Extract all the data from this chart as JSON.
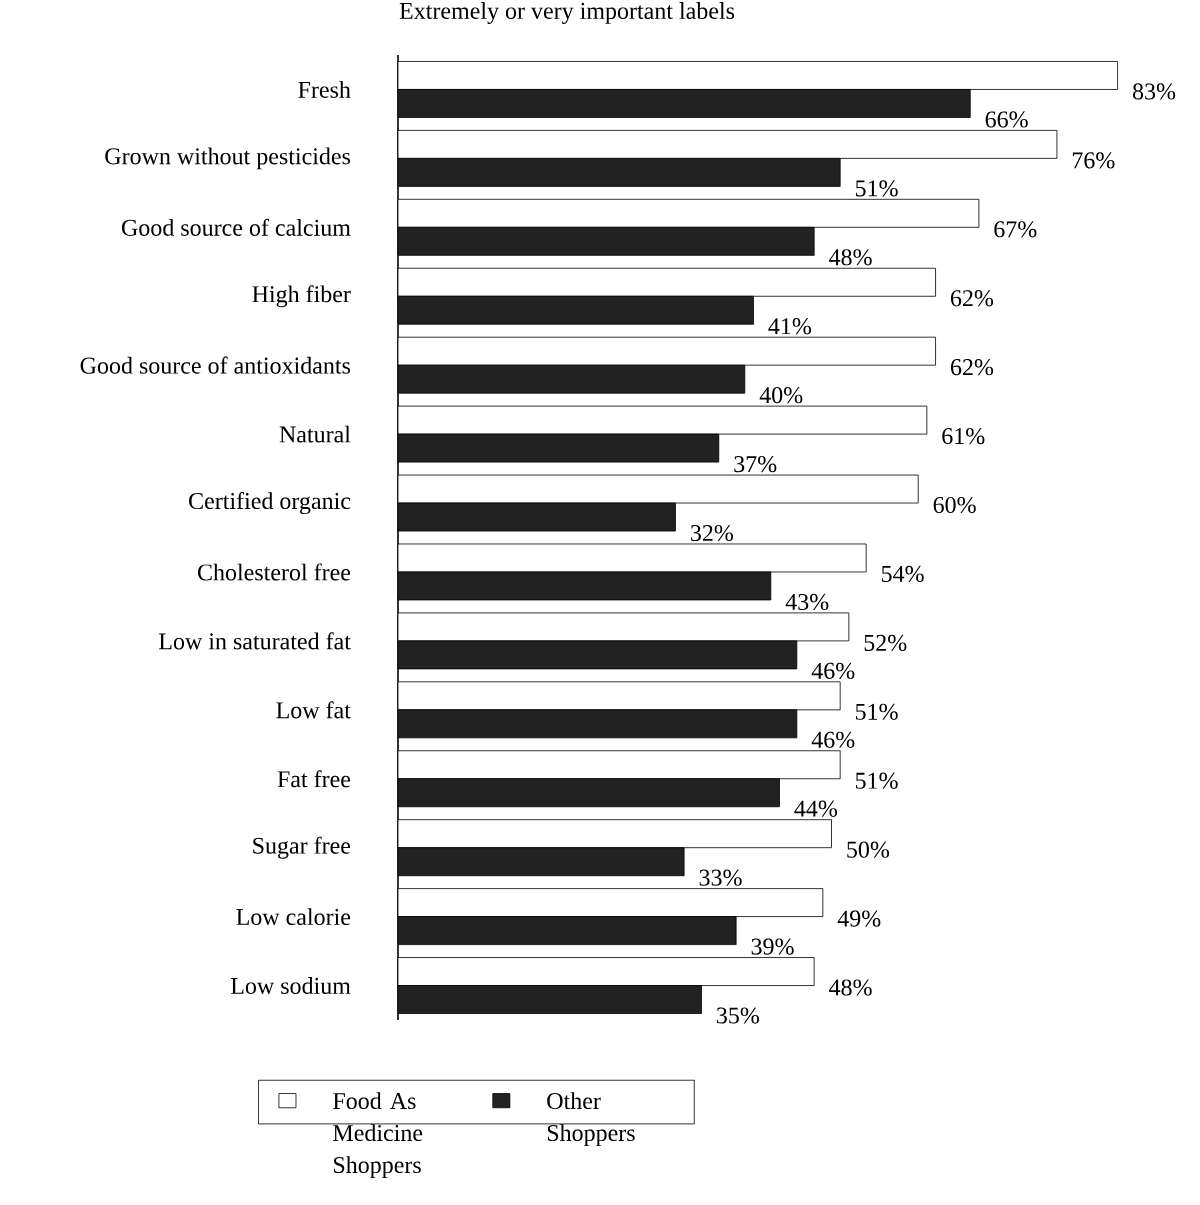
{
  "chart_data": {
    "type": "bar",
    "orientation": "horizontal",
    "title": "Extremely or very important labels",
    "categories": [
      "Fresh",
      "Grown without pesticides",
      "Good source of calcium",
      "High fiber",
      "Good source of antioxidants",
      "Natural",
      "Certified organic",
      "Cholesterol free",
      "Low in saturated fat",
      "Low fat",
      "Fat free",
      "Sugar free",
      "Low calorie",
      "Low sodium"
    ],
    "series": [
      {
        "name": "Food As Medicine Shoppers",
        "color": "#ffffff",
        "values": [
          83,
          76,
          67,
          62,
          62,
          61,
          60,
          54,
          52,
          51,
          51,
          50,
          49,
          48
        ],
        "value_labels": [
          "83%",
          "76%",
          "67%",
          "62%",
          "62%",
          "61%",
          "60%",
          "54%",
          "52%",
          "51%",
          "51%",
          "50%",
          "49%",
          "48%"
        ]
      },
      {
        "name": "Other Shoppers",
        "color": "#222222",
        "values": [
          66,
          51,
          48,
          41,
          40,
          37,
          32,
          43,
          46,
          46,
          44,
          33,
          39,
          35
        ],
        "value_labels": [
          "66%",
          "51%",
          "48%",
          "41%",
          "40%",
          "37%",
          "32%",
          "43%",
          "46%",
          "46%",
          "44%",
          "33%",
          "39%",
          "35%"
        ]
      }
    ],
    "legend": "bottom"
  }
}
